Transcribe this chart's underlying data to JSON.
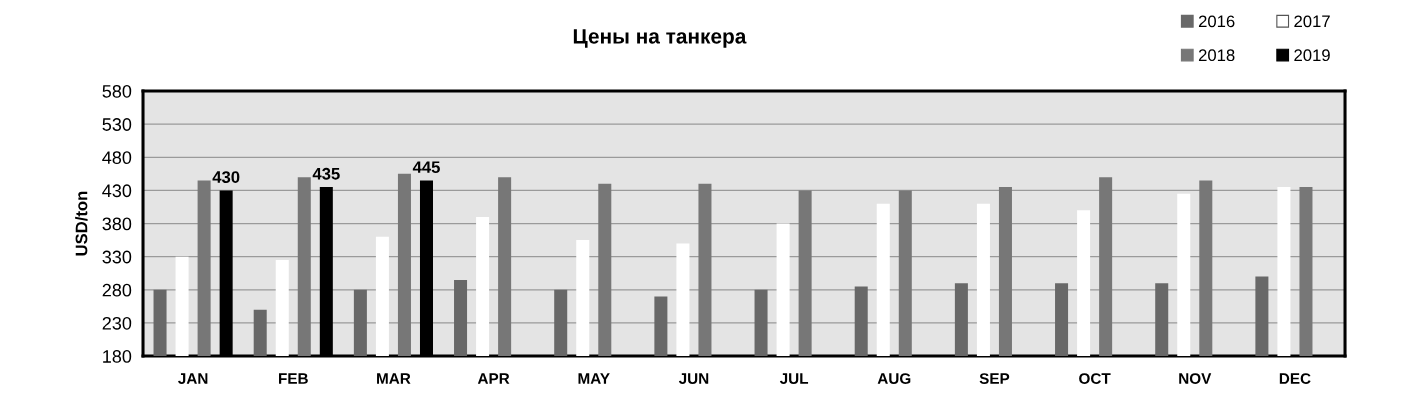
{
  "chart_data": {
    "type": "bar",
    "title": "Цены на танкера",
    "ylabel": "USD/ton",
    "categories": [
      "JAN",
      "FEB",
      "MAR",
      "APR",
      "MAY",
      "JUN",
      "JUL",
      "AUG",
      "SEP",
      "OCT",
      "NOV",
      "DEC"
    ],
    "series": [
      {
        "name": "2016",
        "color": "#686868",
        "values": [
          280,
          250,
          280,
          295,
          280,
          270,
          280,
          285,
          290,
          290,
          290,
          300
        ]
      },
      {
        "name": "2017",
        "color": "#ffffff",
        "values": [
          330,
          325,
          360,
          390,
          355,
          350,
          380,
          410,
          410,
          400,
          425,
          435
        ]
      },
      {
        "name": "2018",
        "color": "#777777",
        "values": [
          445,
          450,
          455,
          450,
          440,
          440,
          430,
          430,
          435,
          450,
          445,
          435
        ]
      },
      {
        "name": "2019",
        "color": "#000000",
        "values": [
          430,
          435,
          445,
          null,
          null,
          null,
          null,
          null,
          null,
          null,
          null,
          null
        ],
        "value_labels": [
          "430",
          "435",
          "445",
          null,
          null,
          null,
          null,
          null,
          null,
          null,
          null,
          null
        ]
      }
    ],
    "ylim": [
      180,
      580
    ],
    "yticks": [
      180,
      230,
      280,
      330,
      380,
      430,
      480,
      530,
      580
    ],
    "grid": "y",
    "legend": "top right"
  }
}
